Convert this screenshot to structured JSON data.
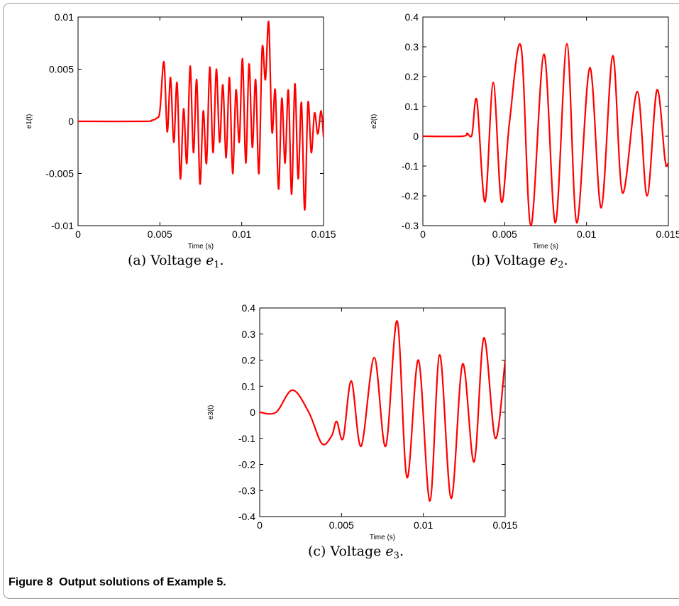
{
  "figure": {
    "label": "Figure 8",
    "text": "Output solutions of Example 5."
  },
  "panels": [
    {
      "caption": {
        "prefix": "(a) Voltage ",
        "var": "e",
        "sub": "1",
        "suffix": "."
      }
    },
    {
      "caption": {
        "prefix": "(b) Voltage ",
        "var": "e",
        "sub": "2",
        "suffix": "."
      }
    },
    {
      "caption": {
        "prefix": "(c) Voltage ",
        "var": "e",
        "sub": "3",
        "suffix": "."
      }
    }
  ],
  "chart_data": [
    {
      "type": "line",
      "xlabel": "Time (s)",
      "ylabel": "e1(t)",
      "xlim": [
        0,
        0.015
      ],
      "ylim": [
        -0.01,
        0.01
      ],
      "xticks": [
        "0",
        "0.005",
        "0.01",
        "0.015"
      ],
      "yticks": [
        "-0.01",
        "-0.005",
        "0",
        "0.005",
        "0.01"
      ],
      "grid": false,
      "color": "#ff0000",
      "x": [
        0,
        0.004,
        0.0045,
        0.0048,
        0.005,
        0.00525,
        0.00545,
        0.00565,
        0.00585,
        0.00605,
        0.00625,
        0.00645,
        0.00665,
        0.00685,
        0.00705,
        0.00725,
        0.00745,
        0.00765,
        0.00785,
        0.00805,
        0.00825,
        0.00845,
        0.00865,
        0.00885,
        0.00905,
        0.00925,
        0.00945,
        0.00965,
        0.00985,
        0.01005,
        0.01025,
        0.01045,
        0.01065,
        0.01085,
        0.01105,
        0.01125,
        0.01145,
        0.01165,
        0.01185,
        0.01205,
        0.01225,
        0.01245,
        0.01265,
        0.01285,
        0.01305,
        0.01325,
        0.01345,
        0.01365,
        0.01385,
        0.01405,
        0.01425,
        0.01445,
        0.01465,
        0.01485,
        0.015
      ],
      "y": [
        0,
        0,
        0.0001,
        0.0003,
        0.001,
        0.0057,
        -0.001,
        0.0042,
        -0.002,
        0.0037,
        -0.0055,
        0.0012,
        -0.004,
        0.0053,
        -0.003,
        0.004,
        -0.006,
        0.001,
        -0.004,
        0.0052,
        -0.003,
        0.005,
        -0.002,
        0.0035,
        -0.0035,
        0.0042,
        -0.005,
        0.003,
        -0.002,
        0.006,
        -0.004,
        0.0055,
        -0.0025,
        0.004,
        -0.005,
        0.007,
        0.004,
        0.0095,
        -0.001,
        0.003,
        -0.0065,
        0.0022,
        -0.004,
        0.003,
        -0.007,
        0.0036,
        -0.0055,
        0.0018,
        -0.0085,
        0.0018,
        -0.003,
        0.0008,
        -0.0012,
        0.001,
        -0.0015
      ]
    },
    {
      "type": "line",
      "xlabel": "Time (s)",
      "ylabel": "e2(t)",
      "xlim": [
        0,
        0.015
      ],
      "ylim": [
        -0.3,
        0.4
      ],
      "xticks": [
        "0",
        "0.005",
        "0.01",
        "0.015"
      ],
      "yticks": [
        "-0.3",
        "-0.2",
        "-0.1",
        "0",
        "0.1",
        "0.2",
        "0.3",
        "0.4"
      ],
      "grid": false,
      "color": "#ff0000",
      "x": [
        0,
        0.0024,
        0.0027,
        0.003,
        0.0033,
        0.0038,
        0.0043,
        0.0048,
        0.0053,
        0.006,
        0.0066,
        0.0074,
        0.0081,
        0.0088,
        0.0094,
        0.0102,
        0.0109,
        0.0116,
        0.0122,
        0.0131,
        0.0137,
        0.0143,
        0.0148,
        0.015
      ],
      "y": [
        0,
        0,
        0.01,
        0.005,
        0.12,
        -0.22,
        0.18,
        -0.22,
        0.05,
        0.3,
        -0.3,
        0.275,
        -0.29,
        0.31,
        -0.29,
        0.23,
        -0.24,
        0.27,
        -0.19,
        0.15,
        -0.2,
        0.155,
        -0.08,
        -0.09
      ]
    },
    {
      "type": "line",
      "xlabel": "Time (s)",
      "ylabel": "e3(t)",
      "xlim": [
        0,
        0.015
      ],
      "ylim": [
        -0.4,
        0.4
      ],
      "xticks": [
        "0",
        "0.005",
        "0.01",
        "0.015"
      ],
      "yticks": [
        "-0.4",
        "-0.3",
        "-0.2",
        "-0.1",
        "0",
        "0.1",
        "0.2",
        "0.3",
        "0.4"
      ],
      "grid": false,
      "color": "#ff0000",
      "x": [
        0,
        0.001,
        0.002,
        0.003,
        0.0038,
        0.0044,
        0.0047,
        0.0051,
        0.0056,
        0.0062,
        0.007,
        0.0077,
        0.0084,
        0.009,
        0.0097,
        0.0104,
        0.011,
        0.0117,
        0.0124,
        0.0131,
        0.0137,
        0.0144,
        0.015
      ],
      "y": [
        0,
        0,
        0.085,
        0.0,
        -0.12,
        -0.09,
        -0.035,
        -0.1,
        0.12,
        -0.13,
        0.21,
        -0.13,
        0.35,
        -0.25,
        0.2,
        -0.34,
        0.22,
        -0.33,
        0.185,
        -0.19,
        0.285,
        -0.1,
        0.2
      ]
    }
  ]
}
